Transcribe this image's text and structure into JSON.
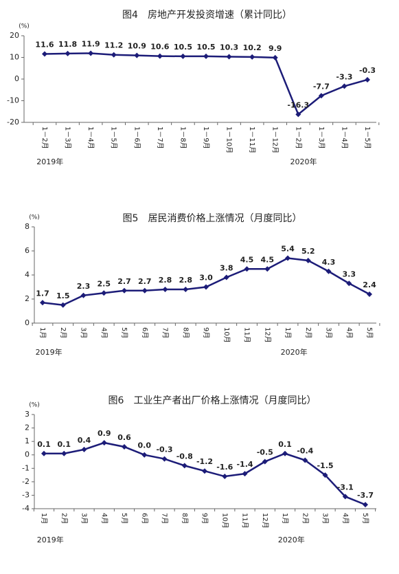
{
  "chart_data": [
    {
      "type": "line",
      "title": "图4　房地产开发投资增速（累计同比）",
      "y_unit": "(%)",
      "categories": [
        "1－2月",
        "1－3月",
        "1－4月",
        "1－5月",
        "1－6月",
        "1－7月",
        "1－8月",
        "1－9月",
        "1－10月",
        "1－11月",
        "1－12月",
        "1－2月",
        "1－3月",
        "1－4月",
        "1－5月"
      ],
      "groups": [
        {
          "label": "2019年",
          "count": 11
        },
        {
          "label": "2020年",
          "count": 4
        }
      ],
      "values": [
        11.6,
        11.8,
        11.9,
        11.2,
        10.9,
        10.6,
        10.5,
        10.5,
        10.3,
        10.2,
        9.9,
        -16.3,
        -7.7,
        -3.3,
        -0.3
      ],
      "color": "#1c1c78",
      "ylim": [
        -20,
        20
      ],
      "yticks": [
        -20,
        -10,
        0,
        10,
        20
      ]
    },
    {
      "type": "line",
      "title": "图5　居民消费价格上涨情况（月度同比）",
      "y_unit": "(%)",
      "categories": [
        "1月",
        "2月",
        "3月",
        "4月",
        "5月",
        "6月",
        "7月",
        "8月",
        "9月",
        "10月",
        "11月",
        "12月",
        "1月",
        "2月",
        "3月",
        "4月",
        "5月"
      ],
      "groups": [
        {
          "label": "2019年",
          "count": 12
        },
        {
          "label": "2020年",
          "count": 5
        }
      ],
      "values": [
        1.7,
        1.5,
        2.3,
        2.5,
        2.7,
        2.7,
        2.8,
        2.8,
        3.0,
        3.8,
        4.5,
        4.5,
        5.4,
        5.2,
        4.3,
        3.3,
        2.4
      ],
      "value_labels": [
        "1.7",
        "1.5",
        "2.3",
        "2.5",
        "2.7",
        "2.7",
        "2.8",
        "2.8",
        "3.0",
        "3.8",
        "4.5",
        "4.5",
        "5.4",
        "5.2",
        "4.3",
        "3.3",
        "2.4"
      ],
      "color": "#1c1c78",
      "ylim": [
        0,
        8
      ],
      "yticks": [
        0,
        2,
        4,
        6,
        8
      ]
    },
    {
      "type": "line",
      "title": "图6　工业生产者出厂价格上涨情况（月度同比）",
      "y_unit": "(%)",
      "categories": [
        "1月",
        "2月",
        "3月",
        "4月",
        "5月",
        "6月",
        "7月",
        "8月",
        "9月",
        "10月",
        "11月",
        "12月",
        "1月",
        "2月",
        "3月",
        "4月",
        "5月"
      ],
      "groups": [
        {
          "label": "2019年",
          "count": 12
        },
        {
          "label": "2020年",
          "count": 5
        }
      ],
      "values": [
        0.1,
        0.1,
        0.4,
        0.9,
        0.6,
        0.0,
        -0.3,
        -0.8,
        -1.2,
        -1.6,
        -1.4,
        -0.5,
        0.1,
        -0.4,
        -1.5,
        -3.1,
        -3.7
      ],
      "value_labels": [
        "0.1",
        "0.1",
        "0.4",
        "0.9",
        "0.6",
        "0.0",
        "-0.3",
        "-0.8",
        "-1.2",
        "-1.6",
        "-1.4",
        "-0.5",
        "0.1",
        "-0.4",
        "-1.5",
        "-3.1",
        "-3.7"
      ],
      "color": "#1c1c78",
      "ylim": [
        -4,
        3
      ],
      "yticks": [
        -4,
        -3,
        -2,
        -1,
        0,
        1,
        2,
        3
      ]
    }
  ]
}
